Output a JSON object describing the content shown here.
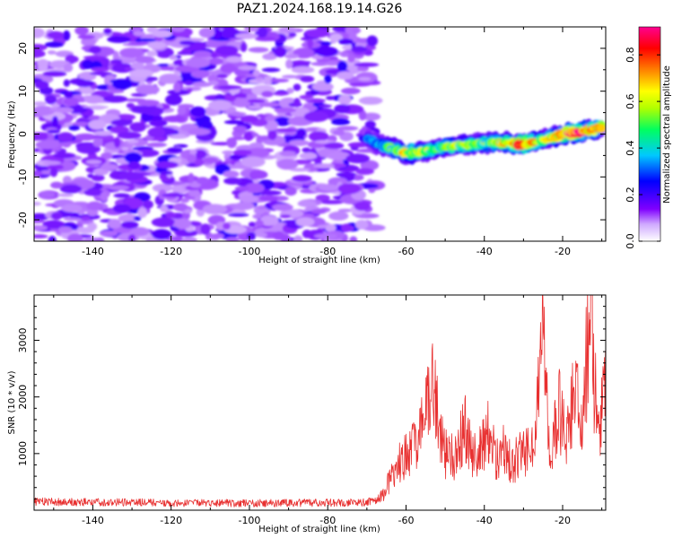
{
  "figure": {
    "title": "PAZ1.2024.168.19.14.G26"
  },
  "chart_data": [
    {
      "type": "heatmap",
      "xlabel": "Height of straight line (km)",
      "ylabel": "Frequency (Hz)",
      "xlim": [
        -155,
        -9
      ],
      "ylim": [
        -25,
        25
      ],
      "x_ticks": [
        -140,
        -120,
        -100,
        -80,
        -60,
        -40,
        -20
      ],
      "y_ticks": [
        -20,
        -10,
        0,
        10,
        20
      ],
      "colorbar": {
        "label": "Normalized spectral amplitude",
        "range": [
          0,
          0.92
        ],
        "ticks": [
          0.0,
          0.2,
          0.4,
          0.6,
          0.8
        ],
        "colormap": [
          "#ffffff",
          "#8000ff",
          "#0000ff",
          "#00c8ff",
          "#00ff60",
          "#b0ff00",
          "#ffff00",
          "#ff8000",
          "#ff0000",
          "#ff0090"
        ]
      },
      "noise_region": {
        "x": [
          -155,
          -68
        ],
        "freq": [
          -25,
          25
        ],
        "amplitude": [
          0.05,
          0.25
        ]
      },
      "signal_ridge": {
        "x": [
          -70,
          -65,
          -60,
          -55,
          -50,
          -45,
          -40,
          -35,
          -30,
          -25,
          -20,
          -15,
          -10
        ],
        "freq": [
          -1,
          -3,
          -4.5,
          -4,
          -3,
          -2.5,
          -2,
          -2,
          -2.5,
          -1.5,
          0,
          0.5,
          1.5
        ],
        "peak_amplitude": [
          0.3,
          0.45,
          0.65,
          0.55,
          0.5,
          0.55,
          0.5,
          0.6,
          0.8,
          0.55,
          0.75,
          0.85,
          0.6
        ]
      }
    },
    {
      "type": "line",
      "xlabel": "Height of straight line (km)",
      "ylabel": "SNR (10 * v/v)",
      "xlim": [
        -155,
        -9
      ],
      "ylim": [
        0,
        3800
      ],
      "x_ticks": [
        -140,
        -120,
        -100,
        -80,
        -60,
        -40,
        -20
      ],
      "y_ticks": [
        1000,
        2000,
        3000
      ],
      "color": "#e83030",
      "series": [
        {
          "x": [
            -155,
            -100,
            -70,
            -66,
            -63,
            -60,
            -57,
            -55,
            -53,
            -50,
            -47,
            -45,
            -43,
            -41,
            -39,
            -37,
            -35,
            -33,
            -31,
            -29,
            -27,
            -25,
            -23,
            -21,
            -19,
            -17,
            -15,
            -13,
            -11,
            -9
          ],
          "values": [
            150,
            120,
            140,
            250,
            700,
            1000,
            1150,
            1900,
            2200,
            1000,
            900,
            1550,
            950,
            1050,
            1400,
            900,
            1100,
            800,
            1000,
            1000,
            1300,
            2850,
            1000,
            1900,
            1200,
            2000,
            1600,
            3700,
            1200,
            2400
          ]
        }
      ]
    }
  ]
}
